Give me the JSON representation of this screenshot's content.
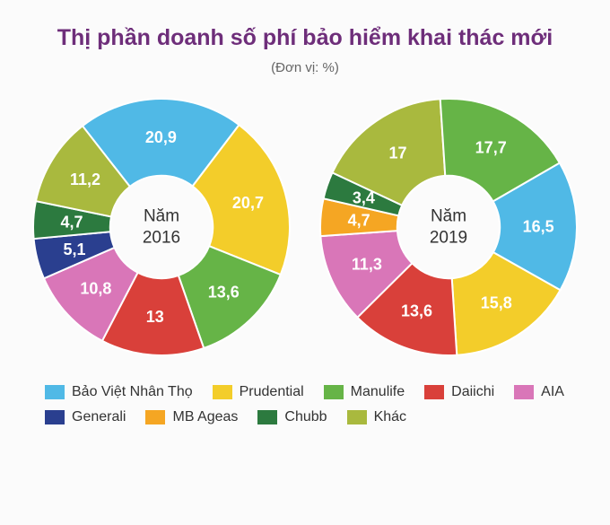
{
  "title": "Thị phần doanh số phí bảo hiểm khai thác mới",
  "subtitle": "(Đơn vị: %)",
  "series": [
    {
      "key": "bao_viet",
      "label": "Bảo Việt Nhân Thọ",
      "color": "#50b9e6"
    },
    {
      "key": "prudential",
      "label": "Prudential",
      "color": "#f3cd2a"
    },
    {
      "key": "manulife",
      "label": "Manulife",
      "color": "#66b447"
    },
    {
      "key": "daiichi",
      "label": "Daiichi",
      "color": "#d9403a"
    },
    {
      "key": "aia",
      "label": "AIA",
      "color": "#d976b8"
    },
    {
      "key": "generali",
      "label": "Generali",
      "color": "#2a3f8f"
    },
    {
      "key": "mb_ageas",
      "label": "MB Ageas",
      "color": "#f5a623"
    },
    {
      "key": "chubb",
      "label": "Chubb",
      "color": "#2c7a3f"
    },
    {
      "key": "khac",
      "label": "Khác",
      "color": "#a9b93e"
    }
  ],
  "charts": [
    {
      "center_label_line1": "Năm",
      "center_label_line2": "2016",
      "start_angle_deg": -128,
      "slices": [
        {
          "series": "bao_viet",
          "value": 20.9,
          "label": "20,9"
        },
        {
          "series": "prudential",
          "value": 20.7,
          "label": "20,7"
        },
        {
          "series": "manulife",
          "value": 13.6,
          "label": "13,6"
        },
        {
          "series": "daiichi",
          "value": 13.0,
          "label": "13"
        },
        {
          "series": "aia",
          "value": 10.8,
          "label": "10,8"
        },
        {
          "series": "generali",
          "value": 5.1,
          "label": "5,1"
        },
        {
          "series": "chubb",
          "value": 4.7,
          "label": "4,7"
        },
        {
          "series": "khac",
          "value": 11.2,
          "label": "11,2"
        }
      ]
    },
    {
      "center_label_line1": "Năm",
      "center_label_line2": "2019",
      "start_angle_deg": -30,
      "slices": [
        {
          "series": "bao_viet",
          "value": 16.5,
          "label": "16,5"
        },
        {
          "series": "prudential",
          "value": 15.8,
          "label": "15,8"
        },
        {
          "series": "daiichi",
          "value": 13.6,
          "label": "13,6"
        },
        {
          "series": "aia",
          "value": 11.3,
          "label": "11,3"
        },
        {
          "series": "mb_ageas",
          "value": 4.7,
          "label": "4,7"
        },
        {
          "series": "chubb",
          "value": 3.4,
          "label": "3,4"
        },
        {
          "series": "khac",
          "value": 17.0,
          "label": "17"
        },
        {
          "series": "manulife",
          "value": 17.7,
          "label": "17,7"
        }
      ]
    }
  ],
  "style": {
    "bg": "#fbfbfb",
    "title_color": "#6e2e7a",
    "title_fontsize": 25,
    "subtitle_color": "#666666",
    "subtitle_fontsize": 15,
    "label_color": "#ffffff",
    "label_fontsize": 18,
    "center_label_color": "#333333",
    "center_label_fontsize": 19,
    "legend_fontsize": 16,
    "inner_radius_ratio": 0.4,
    "slice_stroke": "#ffffff",
    "slice_stroke_width": 2
  }
}
